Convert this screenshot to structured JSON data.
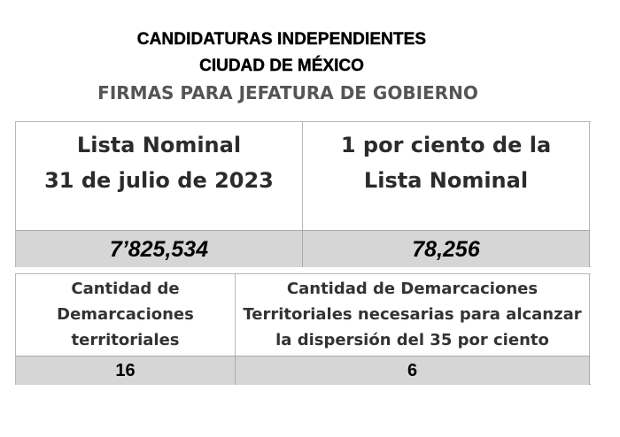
{
  "header": {
    "line1": "CANDIDATURAS INDEPENDIENTES",
    "line2": "CIUDAD DE MÉXICO",
    "line3": "FIRMAS PARA JEFATURA DE GOBIERNO"
  },
  "table1": {
    "col1_header_line1": "Lista Nominal",
    "col1_header_line2": "31 de julio de 2023",
    "col2_header_line1": "1 por ciento de la",
    "col2_header_line2": "Lista Nominal",
    "col1_value": "7’825,534",
    "col2_value": "78,256"
  },
  "table2": {
    "col1_header_line1": "Cantidad de",
    "col1_header_line2": "Demarcaciones",
    "col1_header_line3": "territoriales",
    "col2_header_line1": "Cantidad de Demarcaciones",
    "col2_header_line2": "Territoriales necesarias para alcanzar",
    "col2_header_line3": "la dispersión del 35 por ciento",
    "col1_value": "16",
    "col2_value": "6"
  }
}
